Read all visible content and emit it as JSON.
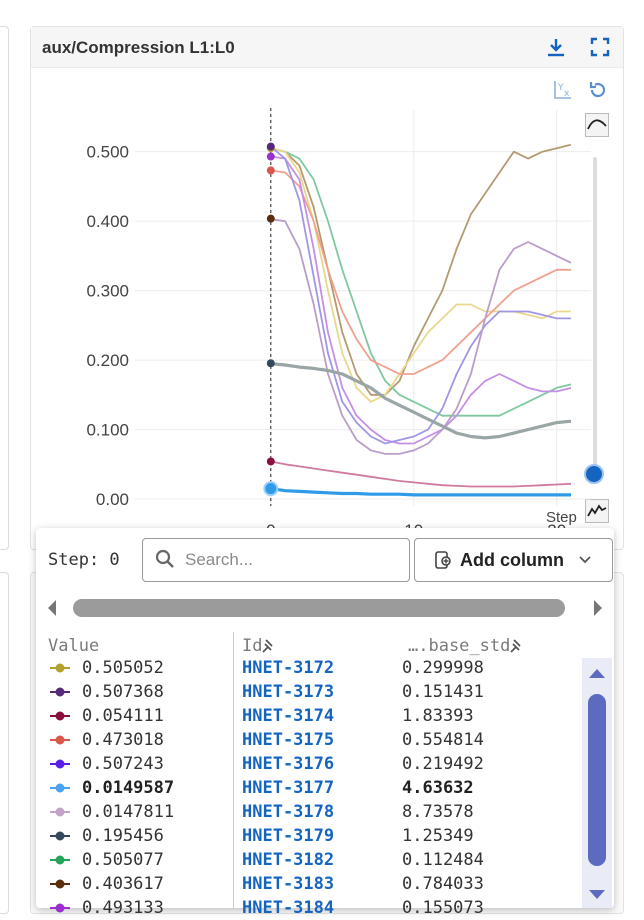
{
  "card": {
    "title": "aux/Compression L1:L0",
    "icons": [
      "download-icon",
      "fullscreen-icon",
      "log-scale-y-icon",
      "reset-zoom-icon",
      "smoothing-curve-icon",
      "smoothing-raw-icon"
    ]
  },
  "chart_data": {
    "type": "line",
    "xlabel": "Step",
    "ylabel": "",
    "xlim": [
      -9.5,
      21
    ],
    "ylim": [
      -0.01,
      0.56
    ],
    "x_ticks": [
      "0",
      "10",
      "20"
    ],
    "y_ticks": [
      "0.00",
      "0.100",
      "0.200",
      "0.300",
      "0.400",
      "0.500"
    ],
    "cursor_step": 0,
    "grid": true,
    "series": [
      {
        "color": "#b39a70",
        "x": [
          0,
          1,
          2,
          3,
          4,
          5,
          6,
          7,
          8,
          9,
          10,
          11,
          12,
          13,
          14,
          15,
          16,
          17,
          18,
          19,
          20,
          21
        ],
        "y": [
          0.505,
          0.5,
          0.48,
          0.42,
          0.33,
          0.24,
          0.18,
          0.15,
          0.15,
          0.17,
          0.22,
          0.26,
          0.3,
          0.36,
          0.41,
          0.44,
          0.47,
          0.5,
          0.49,
          0.5,
          0.505,
          0.51
        ]
      },
      {
        "color": "#7fc8a0",
        "x": [
          0,
          1,
          2,
          3,
          4,
          5,
          6,
          7,
          8,
          9,
          10,
          11,
          12,
          13,
          14,
          15,
          16,
          17,
          18,
          19,
          20,
          21
        ],
        "y": [
          0.505,
          0.5,
          0.49,
          0.46,
          0.4,
          0.33,
          0.27,
          0.21,
          0.17,
          0.15,
          0.14,
          0.13,
          0.12,
          0.12,
          0.12,
          0.12,
          0.12,
          0.13,
          0.14,
          0.15,
          0.16,
          0.165
        ]
      },
      {
        "color": "#e9d88c",
        "x": [
          0,
          1,
          2,
          3,
          4,
          5,
          6,
          7,
          8,
          9,
          10,
          11,
          12,
          13,
          14,
          15,
          16,
          17,
          18,
          19,
          20,
          21
        ],
        "y": [
          0.505,
          0.5,
          0.47,
          0.4,
          0.3,
          0.21,
          0.16,
          0.14,
          0.15,
          0.18,
          0.21,
          0.24,
          0.26,
          0.28,
          0.28,
          0.27,
          0.27,
          0.27,
          0.265,
          0.26,
          0.27,
          0.27
        ]
      },
      {
        "color": "#f0a090",
        "x": [
          0,
          1,
          2,
          3,
          4,
          5,
          6,
          7,
          8,
          9,
          10,
          11,
          12,
          13,
          14,
          15,
          16,
          17,
          18,
          19,
          20,
          21
        ],
        "y": [
          0.473,
          0.47,
          0.45,
          0.4,
          0.33,
          0.27,
          0.23,
          0.2,
          0.19,
          0.18,
          0.18,
          0.19,
          0.2,
          0.22,
          0.24,
          0.26,
          0.28,
          0.3,
          0.31,
          0.32,
          0.33,
          0.33
        ]
      },
      {
        "color": "#c58fe6",
        "x": [
          0,
          1,
          2,
          3,
          4,
          5,
          6,
          7,
          8,
          9,
          10,
          11,
          12,
          13,
          14,
          15,
          16,
          17,
          18,
          19,
          20,
          21
        ],
        "y": [
          0.493,
          0.49,
          0.46,
          0.36,
          0.24,
          0.16,
          0.12,
          0.1,
          0.085,
          0.08,
          0.08,
          0.09,
          0.1,
          0.12,
          0.15,
          0.17,
          0.18,
          0.17,
          0.16,
          0.155,
          0.155,
          0.16
        ]
      },
      {
        "color": "#9f97e6",
        "x": [
          0,
          1,
          2,
          3,
          4,
          5,
          6,
          7,
          8,
          9,
          10,
          11,
          12,
          13,
          14,
          15,
          16,
          17,
          18,
          19,
          20,
          21
        ],
        "y": [
          0.507,
          0.49,
          0.43,
          0.32,
          0.21,
          0.14,
          0.11,
          0.09,
          0.08,
          0.085,
          0.09,
          0.1,
          0.13,
          0.18,
          0.22,
          0.25,
          0.27,
          0.27,
          0.27,
          0.265,
          0.26,
          0.26
        ]
      },
      {
        "color": "#b99ec9",
        "x": [
          0,
          1,
          2,
          3,
          4,
          5,
          6,
          7,
          8,
          9,
          10,
          11,
          12,
          13,
          14,
          15,
          16,
          17,
          18,
          19,
          20,
          21
        ],
        "y": [
          0.403,
          0.4,
          0.36,
          0.28,
          0.18,
          0.12,
          0.085,
          0.07,
          0.065,
          0.065,
          0.07,
          0.08,
          0.1,
          0.13,
          0.18,
          0.26,
          0.33,
          0.36,
          0.37,
          0.36,
          0.35,
          0.34
        ]
      },
      {
        "color": "#9aa5a6",
        "strokeWidth": 3.2,
        "x": [
          0,
          1,
          2,
          3,
          4,
          5,
          6,
          7,
          8,
          9,
          10,
          11,
          12,
          13,
          14,
          15,
          16,
          17,
          18,
          19,
          20,
          21
        ],
        "y": [
          0.195,
          0.193,
          0.19,
          0.188,
          0.185,
          0.18,
          0.17,
          0.16,
          0.145,
          0.135,
          0.125,
          0.115,
          0.105,
          0.095,
          0.09,
          0.088,
          0.09,
          0.095,
          0.1,
          0.105,
          0.11,
          0.112
        ]
      },
      {
        "color": "#d07aa0",
        "x": [
          0,
          1,
          2,
          3,
          4,
          5,
          6,
          7,
          8,
          9,
          10,
          11,
          12,
          13,
          14,
          15,
          16,
          17,
          18,
          19,
          20,
          21
        ],
        "y": [
          0.054,
          0.05,
          0.047,
          0.044,
          0.041,
          0.038,
          0.035,
          0.032,
          0.029,
          0.026,
          0.024,
          0.022,
          0.02,
          0.019,
          0.018,
          0.018,
          0.018,
          0.018,
          0.019,
          0.02,
          0.021,
          0.022
        ]
      },
      {
        "color": "#2f9be8",
        "strokeWidth": 3.2,
        "x": [
          0,
          1,
          2,
          3,
          4,
          5,
          6,
          7,
          8,
          9,
          10,
          11,
          12,
          13,
          14,
          15,
          16,
          17,
          18,
          19,
          20,
          21
        ],
        "y": [
          0.015,
          0.012,
          0.011,
          0.01,
          0.009,
          0.008,
          0.008,
          0.007,
          0.007,
          0.007,
          0.006,
          0.006,
          0.006,
          0.006,
          0.006,
          0.006,
          0.006,
          0.006,
          0.006,
          0.006,
          0.006,
          0.006
        ]
      }
    ],
    "cursor_points": [
      {
        "y": 0.505052,
        "color": "#b3a02e"
      },
      {
        "y": 0.507368,
        "color": "#5a2a7a"
      },
      {
        "y": 0.493,
        "color": "#9b2fd0"
      },
      {
        "y": 0.473018,
        "color": "#d9584a"
      },
      {
        "y": 0.403617,
        "color": "#5a2d0c"
      },
      {
        "y": 0.195456,
        "color": "#34495e"
      },
      {
        "y": 0.054111,
        "color": "#8a1040"
      },
      {
        "y": 0.0149587,
        "color": "#2f9be8"
      }
    ]
  },
  "smoothing_level": 0,
  "panel": {
    "step_label": "Step: 0",
    "search_placeholder": "Search...",
    "add_column_label": "Add column",
    "columns": {
      "value": "Value",
      "id": "Id",
      "std": "….base_std"
    },
    "rows": [
      {
        "marker_color": "#b3a02e",
        "value": "0.505052",
        "id": "HNET-3172",
        "std": "0.299998",
        "bold": false
      },
      {
        "marker_color": "#5a2a7a",
        "value": "0.507368",
        "id": "HNET-3173",
        "std": "0.151431",
        "bold": false
      },
      {
        "marker_color": "#8a1040",
        "value": "0.054111",
        "id": "HNET-3174",
        "std": "1.83393",
        "bold": false
      },
      {
        "marker_color": "#d9584a",
        "value": "0.473018",
        "id": "HNET-3175",
        "std": "0.554814",
        "bold": false
      },
      {
        "marker_color": "#5a1ee8",
        "value": "0.507243",
        "id": "HNET-3176",
        "std": "0.219492",
        "bold": false
      },
      {
        "marker_color": "#4aa3f0",
        "value": "0.0149587",
        "id": "HNET-3177",
        "std": "4.63632",
        "bold": true
      },
      {
        "marker_color": "#c4a3c8",
        "value": "0.0147811",
        "id": "HNET-3178",
        "std": "8.73578",
        "bold": false
      },
      {
        "marker_color": "#34495e",
        "value": "0.195456",
        "id": "HNET-3179",
        "std": "1.25349",
        "bold": false
      },
      {
        "marker_color": "#27a35a",
        "value": "0.505077",
        "id": "HNET-3182",
        "std": "0.112484",
        "bold": false
      },
      {
        "marker_color": "#5a2d0c",
        "value": "0.403617",
        "id": "HNET-3183",
        "std": "0.784033",
        "bold": false
      },
      {
        "marker_color": "#9b2fd0",
        "value": "0.493133",
        "id": "HNET-3184",
        "std": "0.155073",
        "bold": false
      }
    ]
  }
}
